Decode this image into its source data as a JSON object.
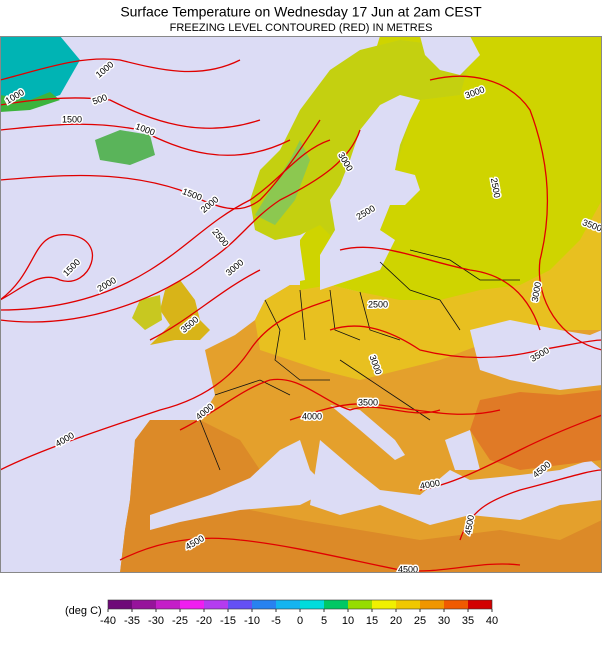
{
  "header": {
    "title": "Surface Temperature on Wednesday 17 Jun at 2am CEST",
    "subtitle": "FREEZING LEVEL CONTOURED (RED) IN METRES"
  },
  "map": {
    "contour_labels": [
      1000,
      1000,
      500,
      1500,
      1000,
      1500,
      2000,
      2500,
      3000,
      1500,
      2000,
      3500,
      3000,
      3000,
      2500,
      2500,
      3500,
      3000,
      2500,
      3000,
      3500,
      3500,
      4000,
      4000,
      4000,
      4000,
      4500,
      4500,
      4500,
      4500
    ]
  },
  "legend": {
    "unit": "(deg C)",
    "ticks": [
      -40,
      -35,
      -30,
      -25,
      -20,
      -15,
      -10,
      -5,
      0,
      5,
      10,
      15,
      20,
      25,
      30,
      35,
      40
    ],
    "colors": [
      "#6e0a78",
      "#96149b",
      "#c41ec8",
      "#f01ef0",
      "#b43cf0",
      "#6450f5",
      "#2882f0",
      "#14b4f0",
      "#00dcdc",
      "#00c864",
      "#96dc00",
      "#f0f000",
      "#f0c800",
      "#f09600",
      "#f05a00",
      "#d20000"
    ]
  }
}
